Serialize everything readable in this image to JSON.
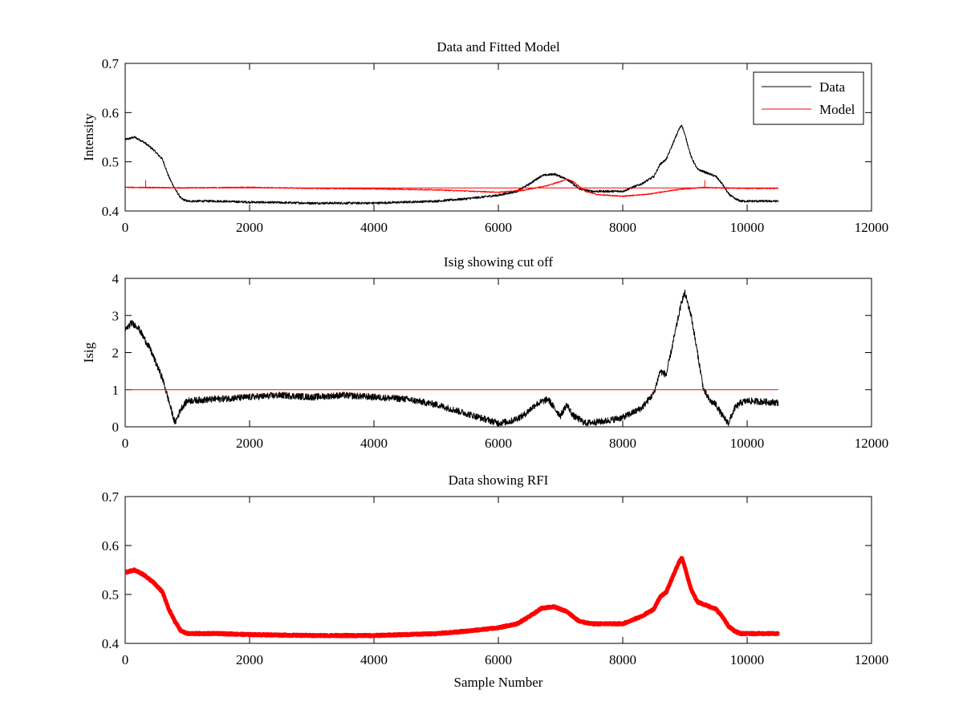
{
  "chart_data": [
    {
      "type": "line",
      "title": "Data and Fitted Model",
      "xlabel": "",
      "ylabel": "Intensity",
      "xlim": [
        0,
        12000
      ],
      "ylim": [
        0.4,
        0.7
      ],
      "xticks": [
        0,
        2000,
        4000,
        6000,
        8000,
        10000,
        12000
      ],
      "yticks": [
        0.4,
        0.5,
        0.6,
        0.7
      ],
      "xtick_labels": [
        "0",
        "2000",
        "4000",
        "6000",
        "8000",
        "10000",
        "12000"
      ],
      "ytick_labels": [
        "0.4",
        "0.5",
        "0.6",
        "0.7"
      ],
      "legend": {
        "position": "top-right",
        "entries": [
          "Data",
          "Model"
        ]
      },
      "grid": false,
      "series": [
        {
          "name": "Data",
          "color": "#000000",
          "x": [
            0,
            150,
            300,
            450,
            600,
            700,
            800,
            900,
            1000,
            1500,
            2000,
            3000,
            4000,
            5000,
            5500,
            6000,
            6300,
            6500,
            6700,
            6900,
            7100,
            7300,
            7500,
            8000,
            8300,
            8500,
            8600,
            8700,
            8800,
            8900,
            8950,
            9000,
            9100,
            9200,
            9300,
            9500,
            9600,
            9700,
            9800,
            9900,
            10000,
            10500
          ],
          "y": [
            0.545,
            0.55,
            0.54,
            0.525,
            0.505,
            0.47,
            0.445,
            0.425,
            0.42,
            0.42,
            0.418,
            0.416,
            0.416,
            0.42,
            0.425,
            0.432,
            0.44,
            0.455,
            0.472,
            0.475,
            0.465,
            0.445,
            0.44,
            0.44,
            0.455,
            0.47,
            0.495,
            0.505,
            0.535,
            0.565,
            0.575,
            0.555,
            0.51,
            0.485,
            0.48,
            0.47,
            0.455,
            0.435,
            0.425,
            0.42,
            0.42,
            0.42
          ]
        },
        {
          "name": "Model",
          "color": "#ff0000",
          "x": [
            0,
            1000,
            2000,
            3000,
            4000,
            5000,
            5600,
            6000,
            6400,
            6800,
            7000,
            7100,
            7200,
            7400,
            7600,
            8000,
            8400,
            8800,
            9000,
            9300,
            9500,
            10000,
            10500
          ],
          "y": [
            0.448,
            0.447,
            0.448,
            0.446,
            0.445,
            0.443,
            0.44,
            0.438,
            0.442,
            0.452,
            0.46,
            0.465,
            0.46,
            0.44,
            0.433,
            0.43,
            0.434,
            0.442,
            0.445,
            0.448,
            0.447,
            0.446,
            0.446
          ]
        }
      ]
    },
    {
      "type": "line",
      "title": "Isig showing cut off",
      "xlabel": "",
      "ylabel": "Isig",
      "xlim": [
        0,
        12000
      ],
      "ylim": [
        0,
        4
      ],
      "xticks": [
        0,
        2000,
        4000,
        6000,
        8000,
        10000,
        12000
      ],
      "yticks": [
        0,
        1,
        2,
        3,
        4
      ],
      "xtick_labels": [
        "0",
        "2000",
        "4000",
        "6000",
        "8000",
        "10000",
        "12000"
      ],
      "ytick_labels": [
        "0",
        "1",
        "2",
        "3",
        "4"
      ],
      "grid": false,
      "series": [
        {
          "color": "#000000",
          "x": [
            0,
            100,
            200,
            300,
            400,
            500,
            600,
            700,
            800,
            900,
            1000,
            1500,
            2000,
            2500,
            3000,
            3500,
            4000,
            4500,
            5000,
            5500,
            5800,
            6000,
            6200,
            6400,
            6600,
            6800,
            6900,
            7000,
            7100,
            7200,
            7400,
            7700,
            8000,
            8300,
            8500,
            8600,
            8700,
            8800,
            8900,
            8950,
            9000,
            9100,
            9200,
            9300,
            9400,
            9500,
            9600,
            9700,
            9800,
            9900,
            10000,
            10500
          ],
          "y": [
            2.6,
            2.8,
            2.7,
            2.4,
            2.1,
            1.7,
            1.3,
            0.7,
            0.1,
            0.5,
            0.7,
            0.75,
            0.8,
            0.85,
            0.8,
            0.85,
            0.8,
            0.75,
            0.6,
            0.35,
            0.2,
            0.1,
            0.15,
            0.3,
            0.6,
            0.75,
            0.5,
            0.3,
            0.6,
            0.3,
            0.1,
            0.15,
            0.25,
            0.5,
            0.9,
            1.5,
            1.4,
            2.2,
            3.0,
            3.4,
            3.6,
            3.0,
            2.0,
            1.0,
            0.7,
            0.6,
            0.3,
            0.1,
            0.5,
            0.65,
            0.7,
            0.65
          ]
        },
        {
          "color": "#ff0000",
          "x": [
            0,
            10500
          ],
          "y": [
            1,
            1
          ]
        }
      ]
    },
    {
      "type": "line",
      "title": "Data showing RFI",
      "xlabel": "Sample Number",
      "ylabel": "",
      "xlim": [
        0,
        12000
      ],
      "ylim": [
        0.4,
        0.7
      ],
      "xticks": [
        0,
        2000,
        4000,
        6000,
        8000,
        10000,
        12000
      ],
      "yticks": [
        0.4,
        0.5,
        0.6,
        0.7
      ],
      "xtick_labels": [
        "0",
        "2000",
        "4000",
        "6000",
        "8000",
        "10000",
        "12000"
      ],
      "ytick_labels": [
        "0.4",
        "0.5",
        "0.6",
        "0.7"
      ],
      "grid": false,
      "series": [
        {
          "color": "#ff0000",
          "x": [
            0,
            150,
            300,
            450,
            600,
            700,
            800,
            900,
            1000,
            1500,
            2000,
            3000,
            4000,
            5000,
            5500,
            6000,
            6300,
            6500,
            6700,
            6900,
            7100,
            7300,
            7500,
            8000,
            8300,
            8500,
            8600,
            8700,
            8800,
            8900,
            8950,
            9000,
            9100,
            9200,
            9300,
            9500,
            9600,
            9700,
            9800,
            9900,
            10000,
            10500
          ],
          "y": [
            0.545,
            0.55,
            0.54,
            0.525,
            0.505,
            0.47,
            0.445,
            0.425,
            0.42,
            0.42,
            0.418,
            0.416,
            0.416,
            0.42,
            0.425,
            0.432,
            0.44,
            0.455,
            0.472,
            0.475,
            0.465,
            0.445,
            0.44,
            0.44,
            0.455,
            0.47,
            0.495,
            0.505,
            0.535,
            0.565,
            0.575,
            0.555,
            0.51,
            0.485,
            0.48,
            0.47,
            0.455,
            0.435,
            0.425,
            0.42,
            0.42,
            0.42
          ]
        }
      ]
    }
  ]
}
